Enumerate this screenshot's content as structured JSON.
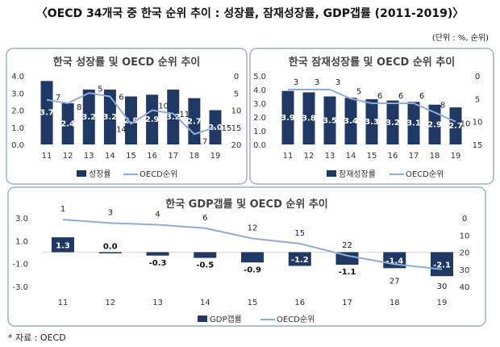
{
  "header": {
    "title": "〈OECD 34개국 중 한국 순위 추이 : 성장률, 잠재성장률, GDP갭률 (2011-2019)〉",
    "unit": "(단위 : %, 순위)"
  },
  "source": "* 자료 : OECD",
  "colors": {
    "bar": "#1f3864",
    "line": "#8faadc",
    "frame": "#9fb0c8"
  },
  "chart_data": [
    {
      "type": "bar+line",
      "title": "한국 성장률 및 OECD 순위 추이",
      "categories": [
        "11",
        "12",
        "13",
        "14",
        "15",
        "16",
        "17",
        "18",
        "19"
      ],
      "series": [
        {
          "name": "성장률",
          "type": "bar",
          "axis": "left",
          "values": [
            3.7,
            2.4,
            3.2,
            3.2,
            2.8,
            2.9,
            3.2,
            2.7,
            2.0
          ]
        },
        {
          "name": "OECD순위",
          "type": "line",
          "axis": "right",
          "values": [
            7,
            8,
            5,
            6,
            14,
            10,
            11,
            17,
            15
          ]
        }
      ],
      "ylim": [
        0,
        4
      ],
      "yticks": [
        "4.0",
        "3.0",
        "2.0",
        "1.0",
        "0.0"
      ],
      "y2lim": [
        0,
        20
      ],
      "y2ticks": [
        "0",
        "5",
        "10",
        "15",
        "20"
      ],
      "legend": "bottom"
    },
    {
      "type": "bar+line",
      "title": "한국 잠재성장률 및 OECD 순위 추이",
      "categories": [
        "11",
        "12",
        "13",
        "14",
        "15",
        "16",
        "17",
        "18",
        "19"
      ],
      "series": [
        {
          "name": "잠재성장률",
          "type": "bar",
          "axis": "left",
          "values": [
            3.9,
            3.8,
            3.5,
            3.4,
            3.3,
            3.2,
            3.1,
            2.9,
            2.7
          ]
        },
        {
          "name": "OECD순위",
          "type": "line",
          "axis": "right",
          "values": [
            3,
            3,
            3,
            5,
            6,
            6,
            6,
            8,
            10
          ]
        }
      ],
      "ylim": [
        0,
        5
      ],
      "yticks": [
        "5.0",
        "4.0",
        "3.0",
        "2.0",
        "1.0",
        "0.0"
      ],
      "y2lim": [
        0,
        15
      ],
      "y2ticks": [
        "0",
        "5",
        "10",
        "15"
      ],
      "legend": "bottom"
    },
    {
      "type": "bar+line",
      "title": "한국 GDP갭률 및 OECD 순위 추이",
      "categories": [
        "11",
        "12",
        "13",
        "14",
        "15",
        "16",
        "17",
        "18",
        "19"
      ],
      "series": [
        {
          "name": "GDP갭률",
          "type": "bar",
          "axis": "left",
          "values": [
            1.3,
            0.0,
            -0.3,
            -0.5,
            -0.9,
            -1.2,
            -1.1,
            -1.4,
            -2.1
          ]
        },
        {
          "name": "OECD순위",
          "type": "line",
          "axis": "right",
          "values": [
            1,
            3,
            4,
            6,
            12,
            15,
            22,
            27,
            30
          ]
        }
      ],
      "ylim": [
        -3,
        3
      ],
      "yticks": [
        "3.0",
        "1.0",
        "-1.0",
        "-3.0"
      ],
      "y2lim": [
        0,
        40
      ],
      "y2ticks": [
        "0",
        "10",
        "20",
        "30",
        "40"
      ],
      "legend": "bottom"
    }
  ]
}
